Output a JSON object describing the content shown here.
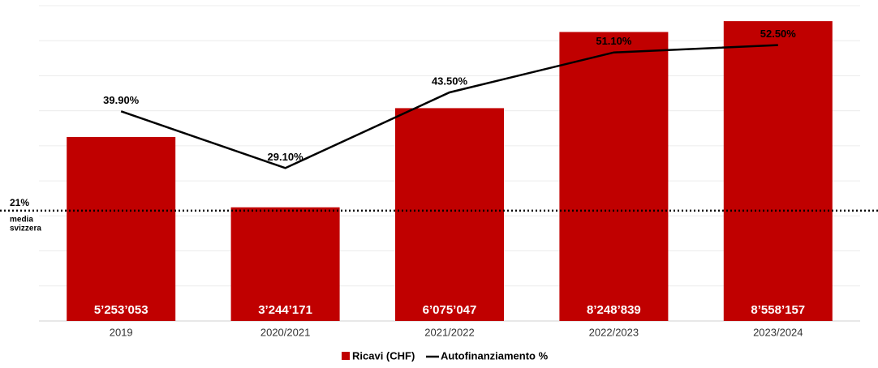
{
  "chart_data": {
    "type": "bar-line",
    "categories": [
      "2019",
      "2020/2021",
      "2021/2022",
      "2022/2023",
      "2023/2024"
    ],
    "series": [
      {
        "name": "Ricavi (CHF)",
        "type": "bar",
        "color": "#c00000",
        "values": [
          5253053,
          3244171,
          6075047,
          8248839,
          8558157
        ],
        "value_labels": [
          "5’253’053",
          "3’244’171",
          "6’075’047",
          "8’248’839",
          "8’558’157"
        ]
      },
      {
        "name": "Autofinanziamento %",
        "type": "line",
        "axis": "y2",
        "color": "#000000",
        "values": [
          39.9,
          29.1,
          43.5,
          51.1,
          52.5
        ],
        "value_labels": [
          "39.90%",
          "29.10%",
          "43.50%",
          "51.10%",
          "52.50%"
        ]
      }
    ],
    "ylim": [
      0,
      9000000
    ],
    "yticks": [
      0,
      1000000,
      2000000,
      3000000,
      4000000,
      5000000,
      6000000,
      7000000,
      8000000,
      9000000
    ],
    "y2lim": [
      0,
      60
    ],
    "grid": true,
    "reference_line": {
      "value": 21,
      "axis": "y2",
      "label": "21%",
      "note": [
        "media",
        "svizzera"
      ]
    },
    "legend": "bottom"
  }
}
